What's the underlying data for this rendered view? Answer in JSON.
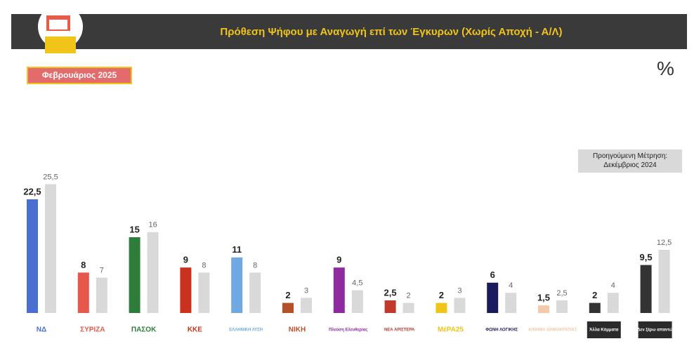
{
  "chart_data": {
    "type": "bar",
    "title": "Πρόθεση Ψήφου με Αναγωγή επί των Έγκυρων (Χωρίς Αποχή - Α/Λ)",
    "unit_mark": "%",
    "categories": [
      "ΝΔ",
      "ΣΥΡΙΖΑ",
      "ΠΑΣΟΚ",
      "ΚΚΕ",
      "ΕΛΛΗΝΙΚΗ ΛΥΣΗ",
      "ΝΙΚΗ",
      "Πλεύση Ελευθερίας",
      "ΝΕΑ ΑΡΙΣΤΕΡΑ",
      "ΜέΡΑ25",
      "ΦΩΝΗ ΛΟΓΙΚΗΣ",
      "ΚΙΝΗΜΑ ΔΗΜΟΚΡΑΤΙΑΣ",
      "Άλλα Κόμματα",
      "Δεν ξέρω απαντώ"
    ],
    "series": [
      {
        "name": "Φεβρουάριος 2025",
        "colors": [
          "#4a6fd0",
          "#e8584a",
          "#2e7d3b",
          "#c8321f",
          "#6fa8e3",
          "#b5502a",
          "#8e2aa0",
          "#c0392b",
          "#f0c419",
          "#1a1a5e",
          "#f3c9a8",
          "#333333",
          "#333333"
        ],
        "values": [
          22.5,
          8,
          15,
          9,
          11,
          2,
          9,
          2.5,
          2,
          6,
          1.5,
          2,
          9.5
        ],
        "value_labels": [
          "22,5",
          "8",
          "15",
          "9",
          "11",
          "2",
          "9",
          "2,5",
          "2",
          "6",
          "1,5",
          "2",
          "9,5"
        ]
      },
      {
        "name": "Προηγούμενη Μέτρηση: Δεκέμβριος 2024",
        "color": "#d9d9d9",
        "values": [
          25.5,
          7,
          16,
          8,
          8,
          3,
          4.5,
          2,
          3,
          4,
          2.5,
          4,
          12.5
        ],
        "value_labels": [
          "25,5",
          "7",
          "16",
          "8",
          "8",
          "3",
          "4,5",
          "2",
          "3",
          "4",
          "2,5",
          "4",
          "12,5"
        ]
      }
    ]
  }
}
